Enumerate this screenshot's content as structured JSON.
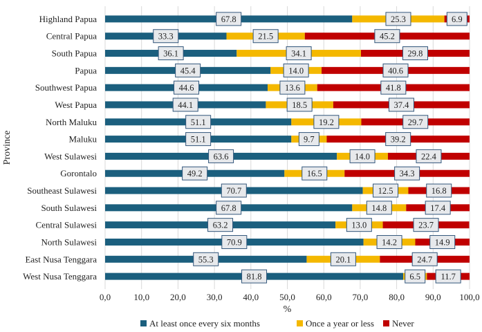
{
  "chart_data": {
    "type": "bar",
    "orientation": "horizontal",
    "stacked": true,
    "title": "",
    "xlabel": "%",
    "ylabel": "Province",
    "xlim": [
      0,
      100
    ],
    "x_ticks": [
      "0,0",
      "10,0",
      "20,0",
      "30,0",
      "40,0",
      "50,0",
      "60,0",
      "70,0",
      "80,0",
      "90,0",
      "100,0"
    ],
    "grid": "vertical",
    "legend_position": "bottom",
    "categories": [
      "Highland Papua",
      "Central Papua",
      "South Papua",
      "Papua",
      "Southwest Papua",
      "West Papua",
      "North Maluku",
      "Maluku",
      "West Sulawesi",
      "Gorontalo",
      "Southeast Sulawesi",
      "South Sulawesi",
      "Central Sulawesi",
      "North Sulawesi",
      "East Nusa Tenggara",
      "West Nusa Tenggara"
    ],
    "series": [
      {
        "name": "At least once every six months",
        "color": "#1b5f7e",
        "values": [
          67.8,
          33.3,
          36.1,
          45.4,
          44.6,
          44.1,
          51.1,
          51.1,
          63.6,
          49.2,
          70.7,
          67.8,
          63.2,
          70.9,
          55.3,
          81.8
        ],
        "labels": [
          "67.8",
          "33.3",
          "36.1",
          "45.4",
          "44.6",
          "44.1",
          "51.1",
          "51.1",
          "63.6",
          "49.2",
          "70.7",
          "67.8",
          "63.2",
          "70.9",
          "55.3",
          "81.8"
        ]
      },
      {
        "name": "Once a year or less",
        "color": "#f4b800",
        "values": [
          25.3,
          21.5,
          34.1,
          14.0,
          13.6,
          18.5,
          19.2,
          9.7,
          14.0,
          16.5,
          12.5,
          14.8,
          13.0,
          14.2,
          20.1,
          6.5
        ],
        "labels": [
          "25.3",
          "21.5",
          "34.1",
          "14.0",
          "13.6",
          "18.5",
          "19.2",
          "9.7",
          "14.0",
          "16.5",
          "12.5",
          "14.8",
          "13.0",
          "14.2",
          "20.1",
          "6.5"
        ]
      },
      {
        "name": "Never",
        "color": "#c00000",
        "values": [
          6.9,
          45.2,
          29.8,
          40.6,
          41.8,
          37.4,
          29.7,
          39.2,
          22.4,
          34.3,
          16.8,
          17.4,
          23.7,
          14.9,
          24.7,
          11.7
        ],
        "labels": [
          "6.9",
          "45.2",
          "29.8",
          "40.6",
          "41.8",
          "37.4",
          "29.7",
          "39.2",
          "22.4",
          "34.3",
          "16.8",
          "17.4",
          "23.7",
          "14.9",
          "24.7",
          "11.7"
        ]
      }
    ]
  }
}
